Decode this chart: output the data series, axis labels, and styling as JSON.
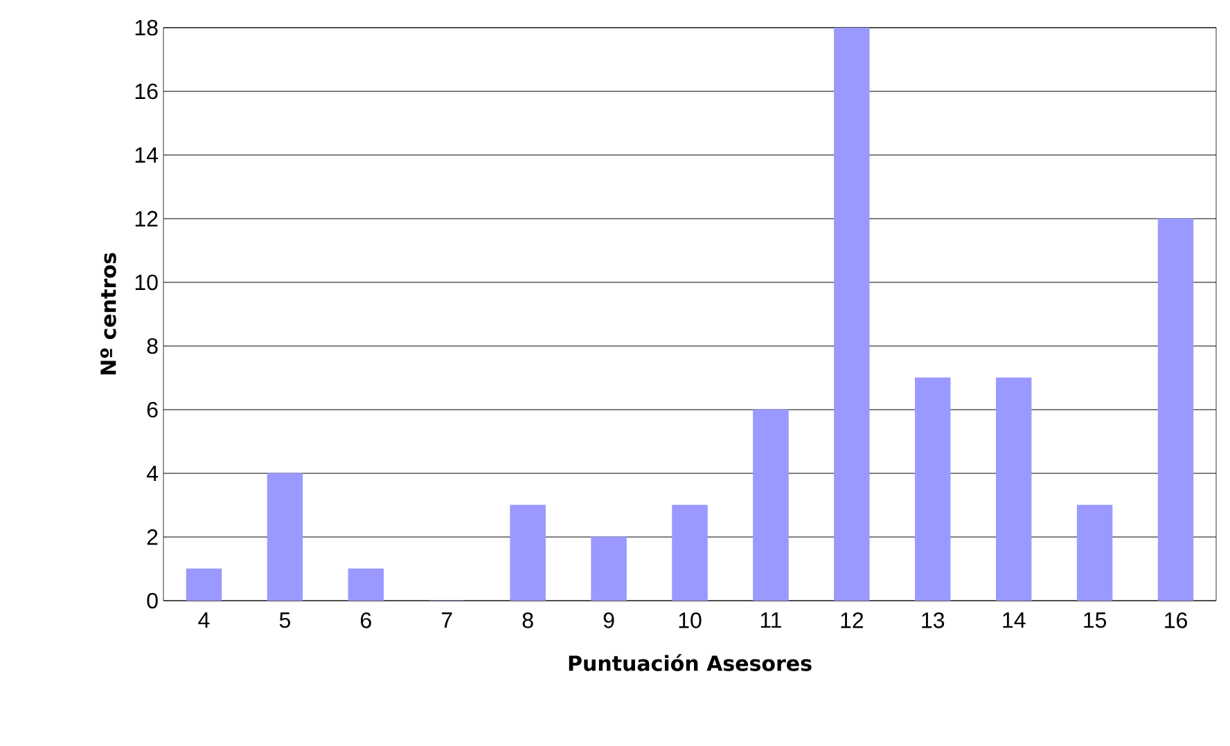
{
  "chart_data": {
    "type": "bar",
    "xlabel": "Puntuación Asesores",
    "ylabel": "Nº centros",
    "categories": [
      "4",
      "5",
      "6",
      "7",
      "8",
      "9",
      "10",
      "11",
      "12",
      "13",
      "14",
      "15",
      "16"
    ],
    "values": [
      1,
      4,
      1,
      0,
      3,
      2,
      3,
      6,
      18,
      7,
      7,
      3,
      12
    ],
    "color": "#9999ff",
    "ylim": [
      0,
      18
    ],
    "yticks": [
      0,
      2,
      4,
      6,
      8,
      10,
      12,
      14,
      16,
      18
    ],
    "grid": "y"
  }
}
